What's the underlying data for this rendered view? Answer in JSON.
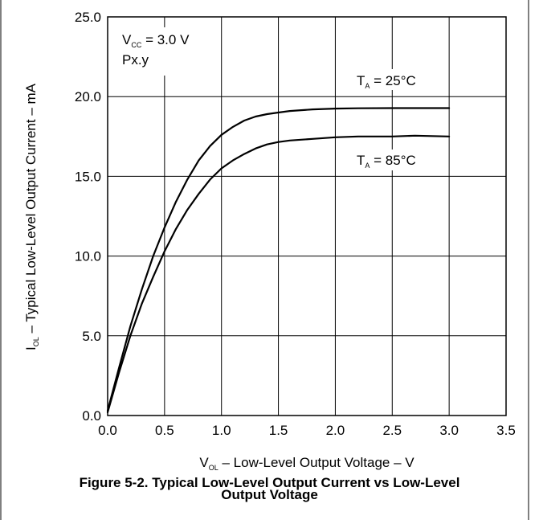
{
  "figure": {
    "caption_line1": "Figure 5-2. Typical Low-Level Output Current vs Low-Level",
    "caption_line2": "Output Voltage"
  },
  "chart_data": {
    "type": "line",
    "xlabel": {
      "symbol": "V",
      "subscript": "OL",
      "text": " – Low-Level Output Voltage – V"
    },
    "ylabel": {
      "symbol": "I",
      "subscript": "OL",
      "text": " – Typical Low-Level Output Current – mA"
    },
    "xlim": [
      0,
      3.5
    ],
    "ylim": [
      0,
      25
    ],
    "x_ticks": [
      "0.0",
      "0.5",
      "1.0",
      "1.5",
      "2.0",
      "2.5",
      "3.0",
      "3.5"
    ],
    "y_ticks": [
      "0.0",
      "5.0",
      "10.0",
      "15.0",
      "20.0",
      "25.0"
    ],
    "grid": true,
    "conditions": {
      "vcc_symbol": "V",
      "vcc_subscript": "CC",
      "vcc_value": " = 3.0 V",
      "pin": "Px.y"
    },
    "series": [
      {
        "name": "T_A = 25°C",
        "label_symbol": "T",
        "label_subscript": "A",
        "label_value": " = 25°C",
        "x": [
          0,
          0.1,
          0.2,
          0.3,
          0.4,
          0.5,
          0.6,
          0.7,
          0.8,
          0.9,
          1.0,
          1.1,
          1.2,
          1.3,
          1.4,
          1.5,
          1.6,
          1.8,
          2.0,
          2.2,
          2.5,
          2.7,
          3.0
        ],
        "values": [
          0.3,
          3.0,
          5.6,
          7.9,
          10.0,
          11.8,
          13.4,
          14.8,
          16.0,
          16.9,
          17.6,
          18.1,
          18.5,
          18.75,
          18.9,
          19.0,
          19.1,
          19.2,
          19.25,
          19.27,
          19.28,
          19.28,
          19.28
        ]
      },
      {
        "name": "T_A = 85°C",
        "label_symbol": "T",
        "label_subscript": "A",
        "label_value": " = 85°C",
        "x": [
          0,
          0.1,
          0.2,
          0.3,
          0.4,
          0.5,
          0.6,
          0.7,
          0.8,
          0.9,
          1.0,
          1.1,
          1.2,
          1.3,
          1.4,
          1.5,
          1.6,
          1.8,
          2.0,
          2.2,
          2.5,
          2.7,
          3.0
        ],
        "values": [
          0.2,
          2.7,
          5.0,
          7.0,
          8.7,
          10.3,
          11.7,
          12.9,
          13.9,
          14.8,
          15.5,
          16.0,
          16.4,
          16.75,
          17.0,
          17.15,
          17.25,
          17.35,
          17.45,
          17.5,
          17.5,
          17.55,
          17.5
        ]
      }
    ]
  }
}
